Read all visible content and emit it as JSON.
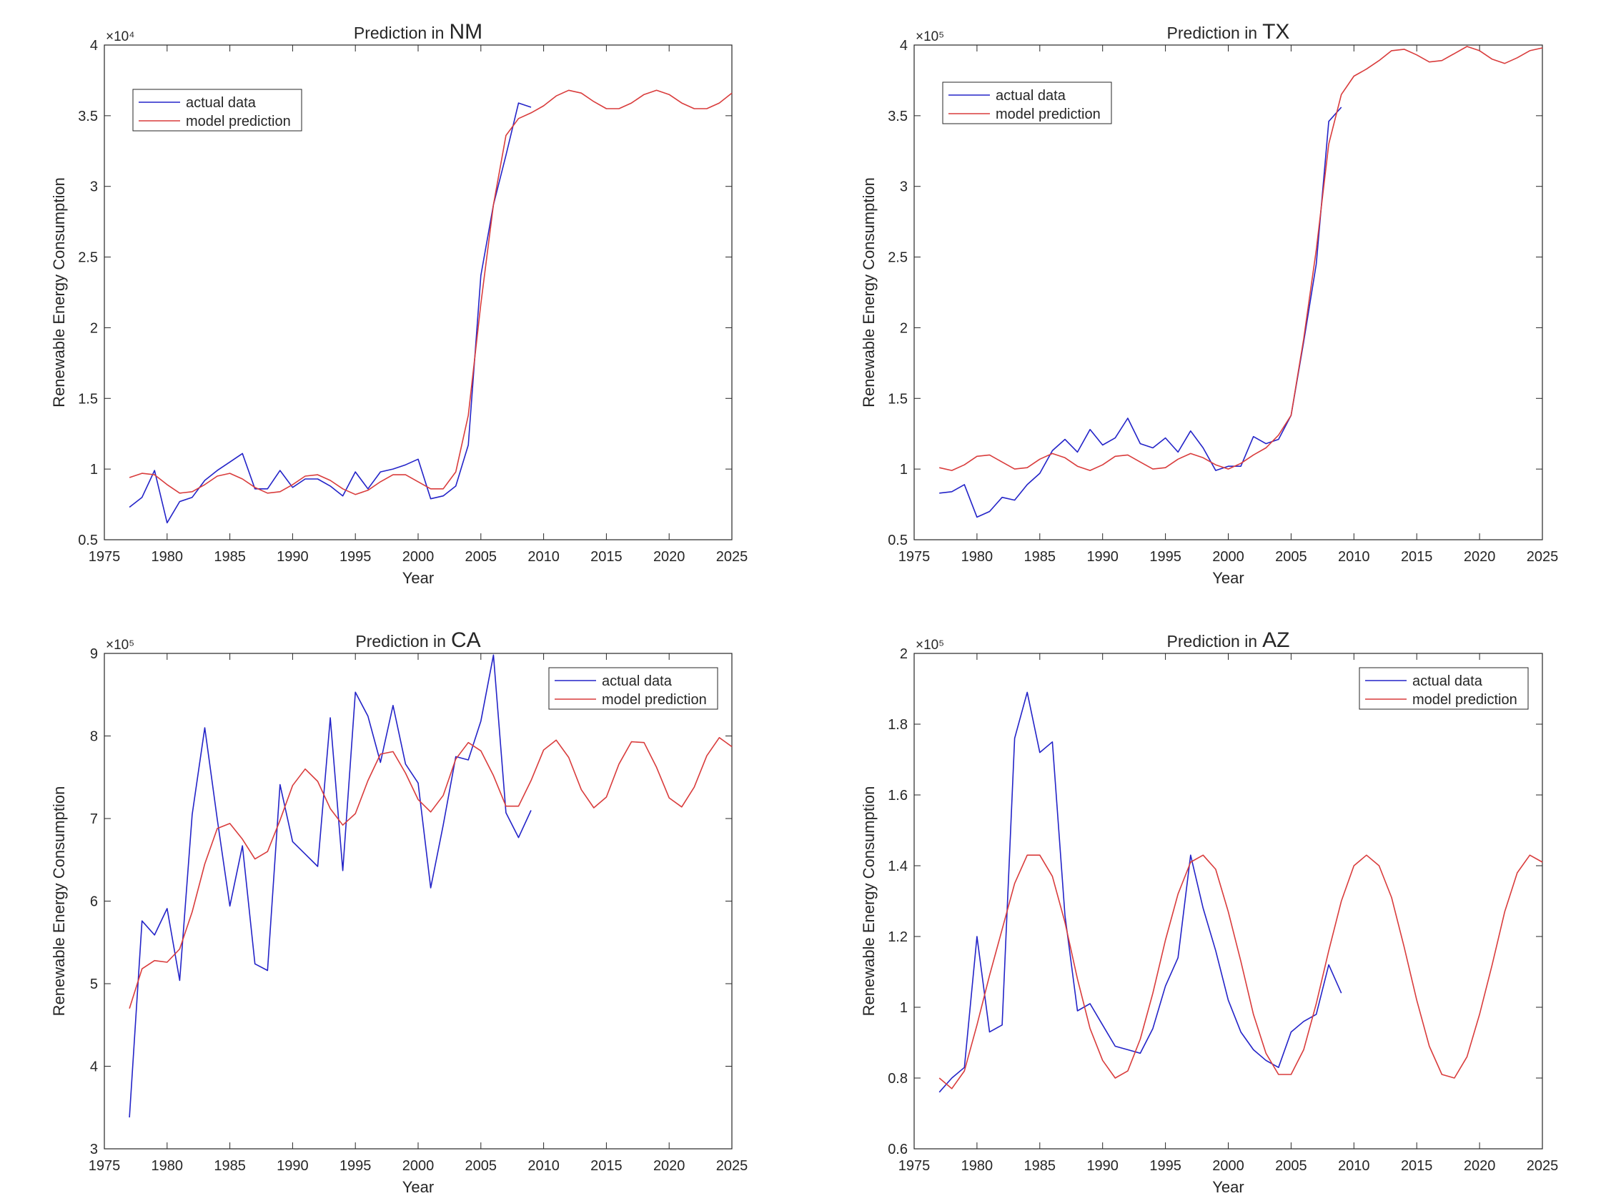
{
  "colors": {
    "actual": "#2323c8",
    "prediction": "#d93c3c",
    "axis": "#262626",
    "background": "#ffffff"
  },
  "chart_data": [
    {
      "type": "line",
      "title_prefix": "Prediction in",
      "title_state": "NM",
      "xlabel": "Year",
      "ylabel": "Renewable Energy Consumption",
      "exponent_label": "×10⁴",
      "xlim": [
        1975,
        2025
      ],
      "ylim": [
        0.5,
        4
      ],
      "scale": 10000,
      "x_ticks": [
        "1975",
        "1980",
        "1985",
        "1990",
        "1995",
        "2000",
        "2005",
        "2010",
        "2015",
        "2020",
        "2025"
      ],
      "y_ticks": [
        "0.5",
        "1",
        "1.5",
        "2",
        "2.5",
        "3",
        "3.5",
        "4"
      ],
      "legend_position": "top-left",
      "series": [
        {
          "name": "actual data",
          "x_start": 1977,
          "values": [
            0.73,
            0.8,
            0.99,
            0.62,
            0.77,
            0.8,
            0.92,
            0.99,
            1.05,
            1.11,
            0.86,
            0.86,
            0.99,
            0.87,
            0.93,
            0.93,
            0.88,
            0.81,
            0.98,
            0.86,
            0.98,
            1.0,
            1.03,
            1.07,
            0.79,
            0.81,
            0.88,
            1.17,
            2.37,
            2.87,
            3.22,
            3.59,
            3.56
          ]
        },
        {
          "name": "model prediction",
          "x_start": 1977,
          "values": [
            0.94,
            0.97,
            0.96,
            0.89,
            0.83,
            0.84,
            0.89,
            0.95,
            0.97,
            0.93,
            0.87,
            0.83,
            0.84,
            0.89,
            0.95,
            0.96,
            0.92,
            0.86,
            0.82,
            0.85,
            0.91,
            0.96,
            0.96,
            0.91,
            0.86,
            0.86,
            0.98,
            1.38,
            2.17,
            2.87,
            3.36,
            3.48,
            3.52,
            3.57,
            3.64,
            3.68,
            3.66,
            3.6,
            3.55,
            3.55,
            3.59,
            3.65,
            3.68,
            3.65,
            3.59,
            3.55,
            3.55,
            3.59,
            3.66
          ]
        }
      ]
    },
    {
      "type": "line",
      "title_prefix": "Prediction in",
      "title_state": "TX",
      "xlabel": "Year",
      "ylabel": "Renewable Energy Consumption",
      "exponent_label": "×10⁵",
      "xlim": [
        1975,
        2025
      ],
      "ylim": [
        0.5,
        4
      ],
      "scale": 100000,
      "x_ticks": [
        "1975",
        "1980",
        "1985",
        "1990",
        "1995",
        "2000",
        "2005",
        "2010",
        "2015",
        "2020",
        "2025"
      ],
      "y_ticks": [
        "0.5",
        "1",
        "1.5",
        "2",
        "2.5",
        "3",
        "3.5",
        "4"
      ],
      "legend_position": "top-left",
      "series": [
        {
          "name": "actual data",
          "x_start": 1977,
          "values": [
            0.83,
            0.84,
            0.89,
            0.66,
            0.7,
            0.8,
            0.78,
            0.89,
            0.97,
            1.13,
            1.21,
            1.12,
            1.28,
            1.17,
            1.22,
            1.36,
            1.18,
            1.15,
            1.22,
            1.12,
            1.27,
            1.15,
            0.99,
            1.02,
            1.02,
            1.23,
            1.18,
            1.21,
            1.38,
            1.9,
            2.45,
            3.46,
            3.56
          ]
        },
        {
          "name": "model prediction",
          "x_start": 1977,
          "values": [
            1.01,
            0.99,
            1.03,
            1.09,
            1.1,
            1.05,
            1.0,
            1.01,
            1.07,
            1.11,
            1.08,
            1.02,
            0.99,
            1.03,
            1.09,
            1.1,
            1.05,
            1.0,
            1.01,
            1.07,
            1.11,
            1.08,
            1.03,
            1.0,
            1.04,
            1.1,
            1.15,
            1.24,
            1.38,
            1.92,
            2.55,
            3.3,
            3.65,
            3.78,
            3.83,
            3.89,
            3.96,
            3.97,
            3.93,
            3.88,
            3.89,
            3.94,
            3.99,
            3.96,
            3.9,
            3.87,
            3.91,
            3.96,
            3.98
          ]
        }
      ]
    },
    {
      "type": "line",
      "title_prefix": "Prediction in",
      "title_state": "CA",
      "xlabel": "Year",
      "ylabel": "Renewable Energy Consumption",
      "exponent_label": "×10⁵",
      "xlim": [
        1975,
        2025
      ],
      "ylim": [
        3,
        9
      ],
      "scale": 100000,
      "x_ticks": [
        "1975",
        "1980",
        "1985",
        "1990",
        "1995",
        "2000",
        "2005",
        "2010",
        "2015",
        "2020",
        "2025"
      ],
      "y_ticks": [
        "3",
        "4",
        "5",
        "6",
        "7",
        "8",
        "9"
      ],
      "legend_position": "top-right",
      "series": [
        {
          "name": "actual data",
          "x_start": 1977,
          "values": [
            3.38,
            5.76,
            5.59,
            5.91,
            5.04,
            7.05,
            8.1,
            6.99,
            5.94,
            6.67,
            5.24,
            5.16,
            7.41,
            6.72,
            6.57,
            6.42,
            8.22,
            6.37,
            8.53,
            8.24,
            7.68,
            8.37,
            7.66,
            7.43,
            6.16,
            6.92,
            7.75,
            7.71,
            8.18,
            8.98,
            7.07,
            6.77,
            7.1
          ]
        },
        {
          "name": "model prediction",
          "x_start": 1977,
          "values": [
            4.7,
            5.18,
            5.28,
            5.26,
            5.42,
            5.87,
            6.45,
            6.88,
            6.94,
            6.75,
            6.51,
            6.6,
            6.98,
            7.4,
            7.6,
            7.45,
            7.12,
            6.92,
            7.06,
            7.46,
            7.78,
            7.81,
            7.55,
            7.23,
            7.08,
            7.28,
            7.72,
            7.92,
            7.82,
            7.52,
            7.15,
            7.15,
            7.46,
            7.83,
            7.95,
            7.74,
            7.35,
            7.13,
            7.26,
            7.66,
            7.93,
            7.92,
            7.62,
            7.25,
            7.14,
            7.38,
            7.76,
            7.98,
            7.87
          ]
        }
      ]
    },
    {
      "type": "line",
      "title_prefix": "Prediction in",
      "title_state": "AZ",
      "xlabel": "Year",
      "ylabel": "Renewable Energy Consumption",
      "exponent_label": "×10⁵",
      "xlim": [
        1975,
        2025
      ],
      "ylim": [
        0.6,
        2
      ],
      "scale": 100000,
      "x_ticks": [
        "1975",
        "1980",
        "1985",
        "1990",
        "1995",
        "2000",
        "2005",
        "2010",
        "2015",
        "2020",
        "2025"
      ],
      "y_ticks": [
        "0.6",
        "0.8",
        "1",
        "1.2",
        "1.4",
        "1.6",
        "1.8",
        "2"
      ],
      "legend_position": "top-right",
      "series": [
        {
          "name": "actual data",
          "x_start": 1977,
          "values": [
            0.76,
            0.8,
            0.83,
            1.2,
            0.93,
            0.95,
            1.76,
            1.89,
            1.72,
            1.75,
            1.26,
            0.99,
            1.01,
            0.95,
            0.89,
            0.88,
            0.87,
            0.94,
            1.06,
            1.14,
            1.43,
            1.28,
            1.16,
            1.02,
            0.93,
            0.88,
            0.85,
            0.83,
            0.93,
            0.96,
            0.98,
            1.12,
            1.04
          ]
        },
        {
          "name": "model prediction",
          "x_start": 1977,
          "values": [
            0.8,
            0.77,
            0.82,
            0.95,
            1.09,
            1.22,
            1.35,
            1.43,
            1.43,
            1.37,
            1.24,
            1.08,
            0.94,
            0.85,
            0.8,
            0.82,
            0.91,
            1.04,
            1.19,
            1.32,
            1.41,
            1.43,
            1.39,
            1.27,
            1.13,
            0.98,
            0.87,
            0.81,
            0.81,
            0.88,
            1.01,
            1.16,
            1.3,
            1.4,
            1.43,
            1.4,
            1.31,
            1.17,
            1.02,
            0.89,
            0.81,
            0.8,
            0.86,
            0.98,
            1.12,
            1.27,
            1.38,
            1.43,
            1.41
          ]
        }
      ]
    }
  ]
}
